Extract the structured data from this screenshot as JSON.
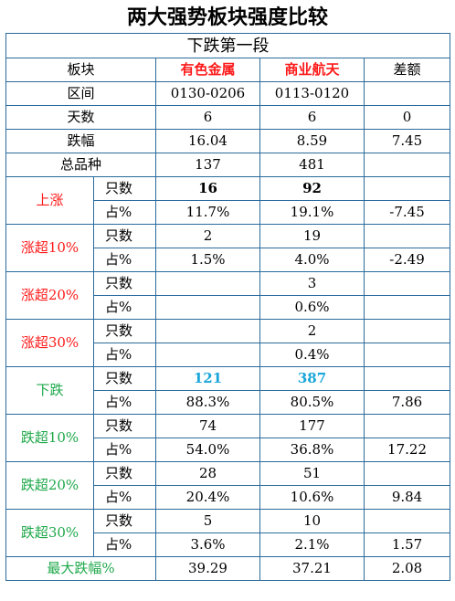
{
  "title": "两大强势板块强度比较",
  "segment": "下跌第一段",
  "columns": {
    "label": "板块",
    "a": "有色金属",
    "b": "商业航天",
    "diff": "差额"
  },
  "rows": {
    "range": {
      "label": "区间",
      "a": "0130-0206",
      "b": "0113-0120",
      "diff": ""
    },
    "days": {
      "label": "天数",
      "a": "6",
      "b": "6",
      "diff": "0"
    },
    "change": {
      "label": "跌幅",
      "a": "16.04",
      "b": "8.59",
      "diff": "7.45"
    },
    "total": {
      "label": "总品种",
      "a": "137",
      "b": "481",
      "diff": ""
    }
  },
  "unit_count": "只数",
  "unit_pct": "占%",
  "groups": [
    {
      "name": "上涨",
      "color": "red",
      "count": {
        "a": "16",
        "b": "92",
        "diff": "",
        "bold": true,
        "tone": ""
      },
      "pct": {
        "a": "11.7%",
        "b": "19.1%",
        "diff": "-7.45"
      }
    },
    {
      "name": "涨超10%",
      "color": "red",
      "count": {
        "a": "2",
        "b": "19",
        "diff": "",
        "bold": false,
        "tone": ""
      },
      "pct": {
        "a": "1.5%",
        "b": "4.0%",
        "diff": "-2.49"
      }
    },
    {
      "name": "涨超20%",
      "color": "red",
      "count": {
        "a": "",
        "b": "3",
        "diff": "",
        "bold": false,
        "tone": ""
      },
      "pct": {
        "a": "",
        "b": "0.6%",
        "diff": ""
      }
    },
    {
      "name": "涨超30%",
      "color": "red",
      "count": {
        "a": "",
        "b": "2",
        "diff": "",
        "bold": false,
        "tone": ""
      },
      "pct": {
        "a": "",
        "b": "0.4%",
        "diff": ""
      }
    },
    {
      "name": "下跌",
      "color": "green",
      "count": {
        "a": "121",
        "b": "387",
        "diff": "",
        "bold": true,
        "tone": "blue"
      },
      "pct": {
        "a": "88.3%",
        "b": "80.5%",
        "diff": "7.86"
      }
    },
    {
      "name": "跌超10%",
      "color": "green",
      "count": {
        "a": "74",
        "b": "177",
        "diff": "",
        "bold": false,
        "tone": ""
      },
      "pct": {
        "a": "54.0%",
        "b": "36.8%",
        "diff": "17.22"
      }
    },
    {
      "name": "跌超20%",
      "color": "green",
      "count": {
        "a": "28",
        "b": "51",
        "diff": "",
        "bold": false,
        "tone": ""
      },
      "pct": {
        "a": "20.4%",
        "b": "10.6%",
        "diff": "9.84"
      }
    },
    {
      "name": "跌超30%",
      "color": "green",
      "count": {
        "a": "5",
        "b": "10",
        "diff": "",
        "bold": false,
        "tone": ""
      },
      "pct": {
        "a": "3.6%",
        "b": "2.1%",
        "diff": "1.57"
      }
    }
  ],
  "max_drop": {
    "label": "最大跌幅%",
    "a": "39.29",
    "b": "37.21",
    "diff": "2.08"
  },
  "colors": {
    "red": "#ff1a1a",
    "green": "#1ea84a",
    "blue": "#1aa6d8",
    "border": "#2a6b9c"
  }
}
